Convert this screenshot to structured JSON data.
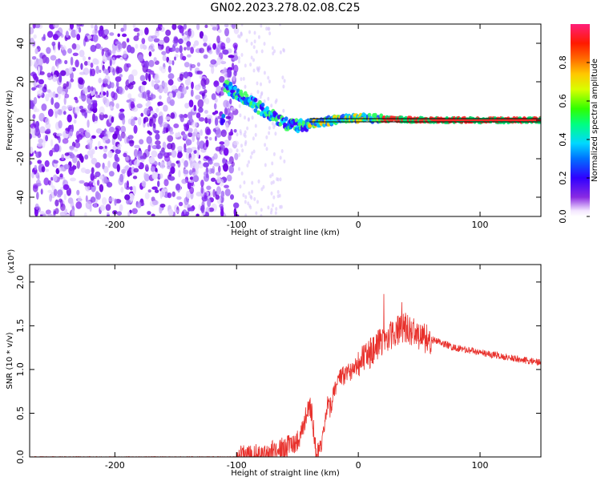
{
  "title": "GN02.2023.278.02.08.C25",
  "colors": {
    "line": "#e8302b",
    "spectrum_low": "#6a00e0",
    "spectrum_high": "#ff2a5a"
  },
  "chart_data": [
    {
      "type": "heatmap",
      "xlabel": "Height of straight line (km)",
      "ylabel": "Frequency (Hz)",
      "xlim": [
        -270,
        150
      ],
      "ylim": [
        -50,
        50
      ],
      "x_ticks": [
        -200,
        -100,
        0,
        100
      ],
      "y_ticks": [
        -40,
        -20,
        0,
        20,
        40
      ],
      "colorbar": {
        "label": "Normalized spectral amplitude",
        "range": [
          0.0,
          1.0
        ],
        "ticks": [
          "0.0",
          "0.2",
          "0.4",
          "0.6",
          "0.8"
        ],
        "tick_values": [
          0.0,
          0.2,
          0.4,
          0.6,
          0.8
        ],
        "colormap": "hsv-like: purple -> blue -> cyan -> green -> yellow -> red -> pink"
      },
      "ridge": {
        "x": [
          -110,
          -100,
          -90,
          -80,
          -70,
          -60,
          -50,
          -40,
          -30,
          -20,
          -10,
          0,
          10,
          20,
          30,
          40,
          50,
          60,
          80,
          100,
          120,
          150
        ],
        "y": [
          18,
          14,
          10,
          6,
          2,
          -2,
          -3,
          -2,
          -1,
          0,
          0.5,
          1,
          1,
          0.5,
          0.5,
          0.3,
          0.2,
          0.1,
          0,
          0,
          0,
          0
        ]
      },
      "reference_line": {
        "y": 0
      }
    },
    {
      "type": "line",
      "xlabel": "Height of straight line (km)",
      "ylabel": "SNR (10 * v/v)",
      "y_multiplier": "(x10⁴)",
      "xlim": [
        -270,
        150
      ],
      "ylim": [
        0,
        2.2
      ],
      "x_ticks": [
        -200,
        -100,
        0,
        100
      ],
      "y_ticks": [
        0.0,
        0.5,
        1.0,
        1.5,
        2.0
      ],
      "series": [
        {
          "x": [
            -270,
            -200,
            -120,
            -100,
            -90,
            -80,
            -70,
            -60,
            -50,
            -45,
            -42,
            -40,
            -38,
            -35,
            -33,
            -30,
            -27,
            -25,
            -23,
            -20,
            -15,
            -10,
            0,
            10,
            20,
            30,
            40,
            50,
            60,
            70,
            80,
            100,
            120,
            150
          ],
          "y": [
            0.0,
            0.0,
            0.0,
            0.01,
            0.03,
            0.05,
            0.08,
            0.12,
            0.2,
            0.35,
            0.55,
            0.62,
            0.5,
            0.1,
            0.05,
            0.12,
            0.45,
            0.6,
            0.55,
            0.8,
            0.9,
            0.95,
            1.1,
            1.2,
            1.35,
            1.45,
            1.5,
            1.4,
            1.35,
            1.3,
            1.25,
            1.2,
            1.15,
            1.08
          ]
        }
      ]
    }
  ]
}
